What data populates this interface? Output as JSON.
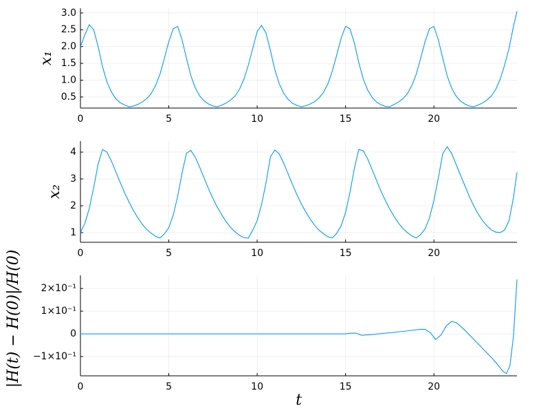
{
  "chart_data": [
    {
      "type": "line",
      "ylabel": "x₁",
      "color": "#009af9",
      "grid": true,
      "xlim": [
        0,
        24.7
      ],
      "xticks": [
        0,
        5,
        10,
        15,
        20
      ],
      "ylim": [
        0.17,
        3.14
      ],
      "yticks": [
        0.5,
        {
          "value": 1,
          "label": "1.0"
        },
        1.5,
        {
          "value": 2,
          "label": "2.0"
        },
        2.5,
        {
          "value": 3,
          "label": "3.0"
        }
      ],
      "x": [
        0,
        0.25,
        0.5,
        0.75,
        1,
        1.25,
        1.5,
        1.75,
        2,
        2.25,
        2.5,
        2.75,
        3,
        3.25,
        3.5,
        3.75,
        4,
        4.25,
        4.5,
        4.75,
        5,
        5.25,
        5.5,
        5.75,
        6,
        6.25,
        6.5,
        6.75,
        7,
        7.25,
        7.5,
        7.75,
        8,
        8.25,
        8.5,
        8.75,
        9,
        9.25,
        9.5,
        9.75,
        10,
        10.25,
        10.5,
        10.75,
        11,
        11.25,
        11.5,
        11.75,
        12,
        12.25,
        12.5,
        12.75,
        13,
        13.25,
        13.5,
        13.75,
        14,
        14.25,
        14.5,
        14.75,
        15,
        15.25,
        15.5,
        15.75,
        16,
        16.25,
        16.5,
        16.75,
        17,
        17.25,
        17.5,
        17.75,
        18,
        18.25,
        18.5,
        18.75,
        19,
        19.25,
        19.5,
        19.75,
        20,
        20.25,
        20.5,
        20.75,
        21,
        21.25,
        21.5,
        21.75,
        22,
        22.25,
        22.5,
        22.75,
        23,
        23.25,
        23.5,
        23.75,
        24,
        24.25,
        24.5,
        24.7
      ],
      "values": [
        2.0,
        2.35,
        2.65,
        2.5,
        2.0,
        1.4,
        0.95,
        0.65,
        0.45,
        0.33,
        0.26,
        0.21,
        0.23,
        0.28,
        0.35,
        0.45,
        0.6,
        0.84,
        1.18,
        1.65,
        2.15,
        2.53,
        2.6,
        2.2,
        1.65,
        1.13,
        0.77,
        0.53,
        0.38,
        0.29,
        0.23,
        0.21,
        0.26,
        0.32,
        0.41,
        0.53,
        0.73,
        1.03,
        1.45,
        1.95,
        2.45,
        2.63,
        2.4,
        1.88,
        1.31,
        0.89,
        0.61,
        0.43,
        0.31,
        0.25,
        0.21,
        0.24,
        0.29,
        0.36,
        0.47,
        0.64,
        0.89,
        1.27,
        1.75,
        2.25,
        2.6,
        2.53,
        2.1,
        1.52,
        1.04,
        0.71,
        0.49,
        0.35,
        0.27,
        0.22,
        0.21,
        0.28,
        0.35,
        0.45,
        0.6,
        0.84,
        1.18,
        1.65,
        2.15,
        2.53,
        2.6,
        2.2,
        1.65,
        1.13,
        0.77,
        0.53,
        0.38,
        0.29,
        0.23,
        0.21,
        0.26,
        0.32,
        0.41,
        0.53,
        0.73,
        1.03,
        1.45,
        1.95,
        2.6,
        3.05
      ]
    },
    {
      "type": "line",
      "ylabel": "x₂",
      "color": "#009af9",
      "grid": true,
      "xlim": [
        0,
        24.7
      ],
      "xticks": [
        0,
        5,
        10,
        15,
        20
      ],
      "ylim": [
        0.64,
        4.41
      ],
      "yticks": [
        1,
        2,
        3,
        4
      ],
      "x": [
        0,
        0.25,
        0.5,
        0.75,
        1,
        1.25,
        1.5,
        1.75,
        2,
        2.25,
        2.5,
        2.75,
        3,
        3.25,
        3.5,
        3.75,
        4,
        4.25,
        4.5,
        4.75,
        5,
        5.25,
        5.5,
        5.75,
        6,
        6.25,
        6.5,
        6.75,
        7,
        7.25,
        7.5,
        7.75,
        8,
        8.25,
        8.5,
        8.75,
        9,
        9.25,
        9.5,
        9.75,
        10,
        10.25,
        10.5,
        10.75,
        11,
        11.25,
        11.5,
        11.75,
        12,
        12.25,
        12.5,
        12.75,
        13,
        13.25,
        13.5,
        13.75,
        14,
        14.25,
        14.5,
        14.75,
        15,
        15.25,
        15.5,
        15.75,
        16,
        16.25,
        16.5,
        16.75,
        17,
        17.25,
        17.5,
        17.75,
        18,
        18.25,
        18.5,
        18.75,
        19,
        19.25,
        19.5,
        19.75,
        20,
        20.25,
        20.5,
        20.75,
        21,
        21.25,
        21.5,
        21.75,
        22,
        22.25,
        22.5,
        22.75,
        23,
        23.25,
        23.5,
        23.75,
        24,
        24.25,
        24.5,
        24.7
      ],
      "values": [
        1.0,
        1.35,
        1.9,
        2.68,
        3.55,
        4.1,
        4.0,
        3.67,
        3.27,
        2.87,
        2.48,
        2.14,
        1.82,
        1.55,
        1.31,
        1.12,
        0.98,
        0.86,
        0.8,
        0.95,
        1.19,
        1.65,
        2.35,
        3.22,
        3.96,
        4.06,
        3.81,
        3.43,
        3.03,
        2.63,
        2.27,
        1.94,
        1.66,
        1.4,
        1.19,
        1.03,
        0.9,
        0.81,
        0.8,
        1.09,
        1.45,
        2.05,
        2.86,
        3.82,
        4.08,
        3.93,
        3.59,
        3.19,
        2.79,
        2.41,
        2.07,
        1.77,
        1.5,
        1.27,
        1.09,
        0.96,
        0.85,
        0.8,
        0.98,
        1.25,
        1.75,
        2.5,
        3.4,
        4.1,
        4.05,
        3.75,
        3.35,
        2.95,
        2.55,
        2.2,
        1.88,
        1.6,
        1.35,
        1.15,
        1.0,
        0.88,
        0.8,
        0.93,
        1.14,
        1.55,
        2.2,
        3.04,
        3.95,
        4.2,
        3.95,
        3.55,
        3.15,
        2.75,
        2.35,
        2.0,
        1.7,
        1.45,
        1.25,
        1.1,
        1.02,
        1.0,
        1.1,
        1.45,
        2.3,
        3.25
      ]
    },
    {
      "type": "line",
      "ylabel": "|H(t) − H(0)|/H(0)",
      "xlabel": "t",
      "color": "#009af9",
      "grid": true,
      "xlim": [
        0,
        24.7
      ],
      "xticks": [
        0,
        5,
        10,
        15,
        20
      ],
      "ylim": [
        -0.185,
        0.258
      ],
      "yticks": [
        {
          "value": -0.1,
          "label": "−1×10⁻¹"
        },
        0,
        {
          "value": 0.1,
          "label": "1×10⁻¹"
        },
        {
          "value": 0.2,
          "label": "2×10⁻¹"
        }
      ],
      "x": [
        0,
        5,
        10,
        14.5,
        15,
        15.3,
        15.6,
        15.9,
        16.5,
        17.5,
        18.5,
        19.2,
        19.5,
        19.8,
        20.1,
        20.4,
        20.7,
        21.0,
        21.3,
        21.7,
        22.2,
        22.7,
        23.2,
        23.6,
        23.9,
        24.1,
        24.3,
        24.5,
        24.7
      ],
      "values": [
        0,
        0,
        0,
        0,
        0,
        0.003,
        0.003,
        -0.006,
        -0.003,
        0.005,
        0.013,
        0.02,
        0.02,
        0.005,
        -0.025,
        -0.005,
        0.035,
        0.055,
        0.048,
        0.02,
        -0.02,
        -0.06,
        -0.1,
        -0.135,
        -0.165,
        -0.175,
        -0.14,
        -0.01,
        0.24
      ]
    }
  ]
}
